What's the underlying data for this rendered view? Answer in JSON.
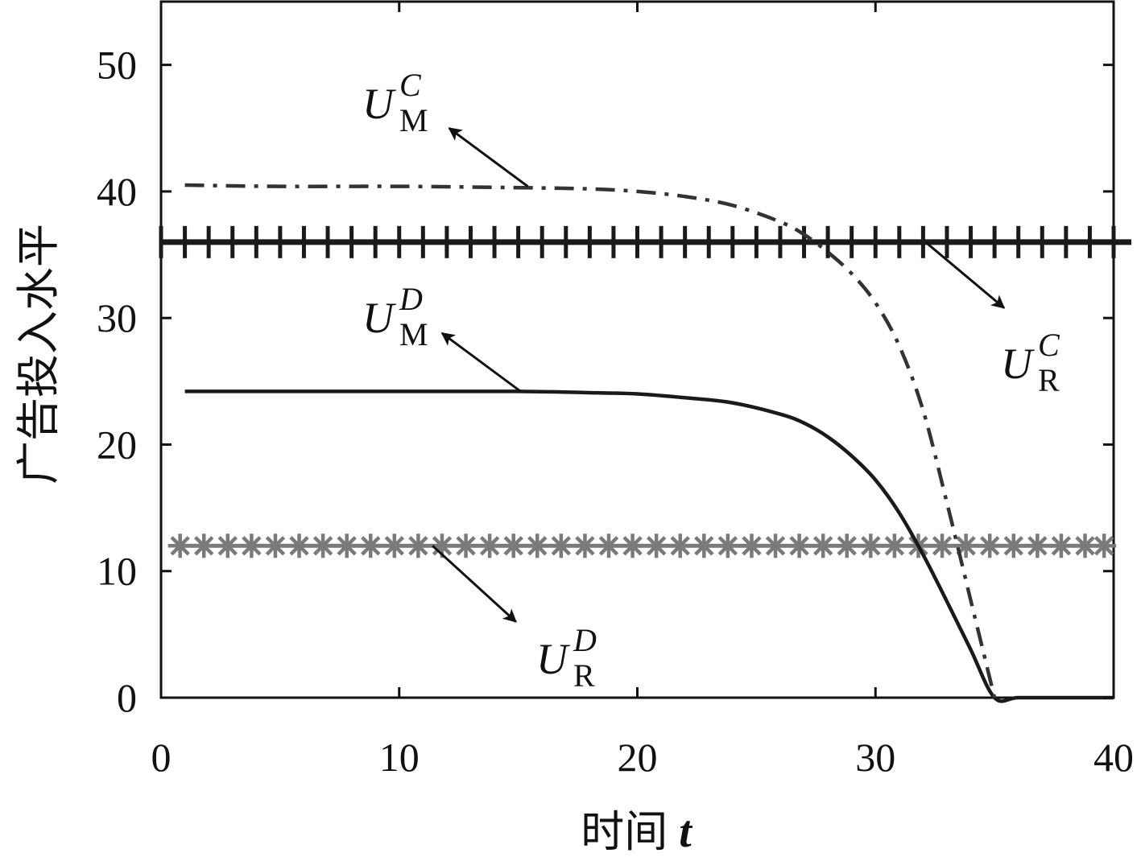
{
  "chart_data": {
    "type": "line",
    "title": "",
    "xlabel": "时间",
    "xlabel_var": "t",
    "ylabel": "广告投入水平",
    "xlim": [
      0,
      40
    ],
    "ylim": [
      0,
      55
    ],
    "xticks": [
      0,
      10,
      20,
      30,
      40
    ],
    "yticks": [
      0,
      10,
      20,
      30,
      40,
      50
    ],
    "xtick_labels": [
      "0",
      "10",
      "20",
      "30",
      "40"
    ],
    "ytick_labels": [
      "0",
      "10",
      "20",
      "30",
      "40",
      "50"
    ],
    "grid": false,
    "legend": "none (arrow annotations)",
    "series": [
      {
        "label": {
          "main": "U",
          "sup": "C",
          "sub": "M"
        },
        "style": "dash-dot",
        "color": "#333333",
        "x": [
          1,
          5,
          10,
          15,
          18,
          20,
          22,
          24,
          26,
          27,
          28,
          29,
          30,
          31,
          32,
          33,
          34,
          35
        ],
        "y": [
          40.5,
          40.4,
          40.4,
          40.3,
          40.2,
          40.0,
          39.6,
          38.9,
          37.6,
          36.6,
          35.2,
          33.5,
          31.2,
          27.8,
          22.7,
          15.4,
          7.7,
          0
        ]
      },
      {
        "label": {
          "main": "U",
          "sup": "C",
          "sub": "R"
        },
        "style": "solid with vertical tick markers",
        "color": "#1a1a1a",
        "x": [
          0,
          1,
          2,
          3,
          4,
          5,
          6,
          7,
          8,
          9,
          10,
          11,
          12,
          13,
          14,
          15,
          16,
          17,
          18,
          19,
          20,
          21,
          22,
          23,
          24,
          25,
          26,
          27,
          28,
          29,
          30,
          31,
          32,
          33,
          34,
          35,
          36,
          37,
          38,
          39,
          40
        ],
        "y": [
          36,
          36,
          36,
          36,
          36,
          36,
          36,
          36,
          36,
          36,
          36,
          36,
          36,
          36,
          36,
          36,
          36,
          36,
          36,
          36,
          36,
          36,
          36,
          36,
          36,
          36,
          36,
          36,
          36,
          36,
          36,
          36,
          36,
          36,
          36,
          36,
          36,
          36,
          36,
          36,
          36
        ]
      },
      {
        "label": {
          "main": "U",
          "sup": "D",
          "sub": "M"
        },
        "style": "solid",
        "color": "#1a1a1a",
        "x": [
          1,
          5,
          10,
          15,
          18,
          20,
          22,
          24,
          26,
          27,
          28,
          29,
          30,
          31,
          32,
          33,
          34,
          35,
          36,
          38,
          40
        ],
        "y": [
          24.2,
          24.2,
          24.2,
          24.2,
          24.1,
          24.0,
          23.7,
          23.3,
          22.4,
          21.7,
          20.6,
          19.1,
          17.2,
          14.6,
          11.3,
          7.6,
          3.8,
          0,
          0,
          0,
          0
        ]
      },
      {
        "label": {
          "main": "U",
          "sup": "D",
          "sub": "R"
        },
        "style": "solid with star markers",
        "color": "#7a7a7a",
        "x": [
          0.8,
          1.8,
          2.8,
          3.8,
          4.8,
          5.8,
          6.8,
          7.8,
          8.8,
          9.8,
          10.8,
          11.8,
          12.8,
          13.8,
          14.8,
          15.8,
          16.8,
          17.8,
          18.8,
          19.8,
          20.8,
          21.8,
          22.8,
          23.8,
          24.8,
          25.8,
          26.8,
          27.8,
          28.8,
          29.8,
          30.8,
          31.8,
          32.8,
          33.8,
          34.8,
          35.8,
          36.8,
          37.8,
          38.8,
          39.6
        ],
        "y": [
          12,
          12,
          12,
          12,
          12,
          12,
          12,
          12,
          12,
          12,
          12,
          12,
          12,
          12,
          12,
          12,
          12,
          12,
          12,
          12,
          12,
          12,
          12,
          12,
          12,
          12,
          12,
          12,
          12,
          12,
          12,
          12,
          12,
          12,
          12,
          12,
          12,
          12,
          12,
          12
        ]
      }
    ]
  }
}
